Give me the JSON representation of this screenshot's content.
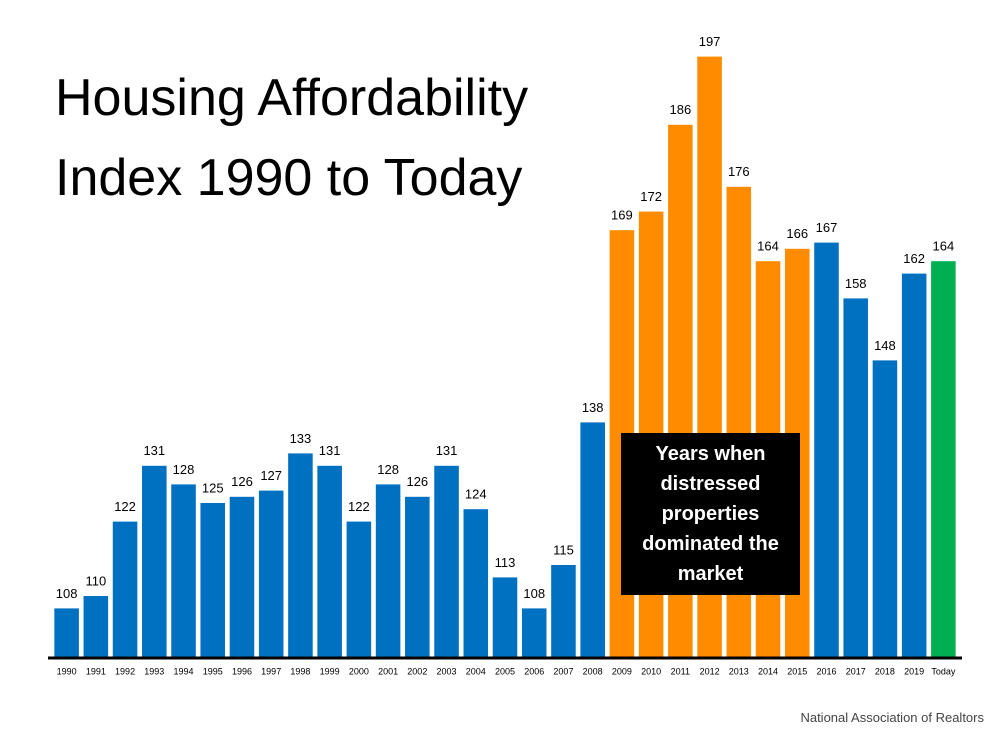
{
  "chart_data": {
    "type": "bar",
    "title": "Housing Affordability Index 1990 to Today",
    "categories": [
      "1990",
      "1991",
      "1992",
      "1993",
      "1994",
      "1995",
      "1996",
      "1997",
      "1998",
      "1999",
      "2000",
      "2001",
      "2002",
      "2003",
      "2004",
      "2005",
      "2006",
      "2007",
      "2008",
      "2009",
      "2010",
      "2011",
      "2012",
      "2013",
      "2014",
      "2015",
      "2016",
      "2017",
      "2018",
      "2019",
      "Today"
    ],
    "values": [
      108,
      110,
      122,
      131,
      128,
      125,
      126,
      127,
      133,
      131,
      122,
      128,
      126,
      131,
      124,
      113,
      108,
      115,
      138,
      169,
      172,
      186,
      197,
      176,
      164,
      166,
      167,
      158,
      148,
      162,
      164
    ],
    "colors": [
      "#0070c0",
      "#0070c0",
      "#0070c0",
      "#0070c0",
      "#0070c0",
      "#0070c0",
      "#0070c0",
      "#0070c0",
      "#0070c0",
      "#0070c0",
      "#0070c0",
      "#0070c0",
      "#0070c0",
      "#0070c0",
      "#0070c0",
      "#0070c0",
      "#0070c0",
      "#0070c0",
      "#0070c0",
      "#ff8c00",
      "#ff8c00",
      "#ff8c00",
      "#ff8c00",
      "#ff8c00",
      "#ff8c00",
      "#ff8c00",
      "#0070c0",
      "#0070c0",
      "#0070c0",
      "#0070c0",
      "#00b050"
    ],
    "ylim": [
      100,
      200
    ],
    "annotation": "Years when distressed properties dominated the market",
    "source": "National Association of Realtors"
  }
}
